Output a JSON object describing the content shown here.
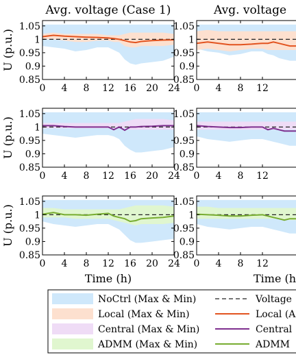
{
  "chart_data": {
    "type": "area",
    "titles": [
      "Avg. voltage (Case 1)",
      "Avg. voltage"
    ],
    "xlabel": "Time (h)",
    "ylabel": "U (p.u.)",
    "xlim": [
      0,
      24
    ],
    "ylim": [
      0.85,
      1.07
    ],
    "xticks": [
      0,
      4,
      8,
      12,
      16,
      20,
      24
    ],
    "right_xticks": [
      0,
      4,
      8,
      12
    ],
    "yticks": [
      0.85,
      0.9,
      0.95,
      1,
      1.05
    ],
    "ytick_labels": [
      "0.85",
      "0.9",
      "0.95",
      "1",
      "1.05"
    ],
    "xtick_labels": [
      "0",
      "4",
      "8",
      "12",
      "16",
      "20",
      "24"
    ],
    "voltage_reference": 1.0,
    "colors": {
      "nocrtl_band": "#cfe8fb",
      "local_band": "#fde0cf",
      "central_band": "#efdcf6",
      "admm_band": "#e0f6cf",
      "local_line": "#e2531f",
      "central_line": "#7e2f8e",
      "admm_line": "#77ac30",
      "ref_line": "#222222"
    },
    "legend": {
      "items": [
        {
          "label": "NoCtrl (Max & Min)",
          "kind": "band",
          "color": "#cfe8fb"
        },
        {
          "label": "Voltage",
          "kind": "dashed",
          "color": "#222222"
        },
        {
          "label": "Local (Max & Min)",
          "kind": "band",
          "color": "#fde0cf"
        },
        {
          "label": "Local (A",
          "kind": "line",
          "color": "#e2531f"
        },
        {
          "label": "Central (Max & Min)",
          "kind": "band",
          "color": "#efdcf6"
        },
        {
          "label": "Central",
          "kind": "line",
          "color": "#7e2f8e"
        },
        {
          "label": "ADMM (Max & Min)",
          "kind": "band",
          "color": "#e0f6cf"
        },
        {
          "label": "ADMM",
          "kind": "line",
          "color": "#77ac30"
        }
      ]
    },
    "x": [
      0,
      2,
      4,
      6,
      8,
      10,
      12,
      13,
      14,
      15,
      16,
      17,
      18,
      20,
      22,
      24
    ],
    "series": [
      {
        "row": 1,
        "panel": "left",
        "nocrtl_max": [
          1.055,
          1.055,
          1.055,
          1.055,
          1.055,
          1.055,
          1.055,
          1.055,
          1.055,
          1.055,
          1.055,
          1.055,
          1.055,
          1.055,
          1.055,
          1.055
        ],
        "nocrtl_min": [
          0.975,
          0.97,
          0.965,
          0.955,
          0.96,
          0.97,
          0.97,
          0.96,
          0.95,
          0.925,
          0.91,
          0.905,
          0.91,
          0.915,
          0.92,
          0.935
        ],
        "band_max": [
          1.02,
          1.025,
          1.02,
          1.02,
          1.02,
          1.02,
          1.015,
          1.015,
          1.015,
          1.02,
          1.025,
          1.025,
          1.025,
          1.025,
          1.025,
          1.02
        ],
        "band_min": [
          1.0,
          1.0,
          0.995,
          0.99,
          0.99,
          0.995,
          0.995,
          0.99,
          0.99,
          0.975,
          0.97,
          0.97,
          0.975,
          0.975,
          0.975,
          0.98
        ],
        "line": [
          1.01,
          1.015,
          1.012,
          1.01,
          1.008,
          1.007,
          1.005,
          1.003,
          1.0,
          0.995,
          0.99,
          0.988,
          0.992,
          0.995,
          0.997,
          0.998
        ]
      },
      {
        "row": 1,
        "panel": "right",
        "nocrtl_max": [
          1.055,
          1.055,
          1.055,
          1.055,
          1.055,
          1.055,
          1.055,
          1.055,
          1.055,
          1.055,
          1.055,
          1.055,
          1.055,
          1.055,
          1.055,
          1.055
        ],
        "nocrtl_min": [
          0.965,
          0.955,
          0.95,
          0.94,
          0.945,
          0.955,
          0.955,
          0.945,
          0.94,
          0.93,
          0.925,
          0.92,
          0.92,
          0.92,
          0.925,
          0.93
        ],
        "band_max": [
          1.03,
          1.035,
          1.03,
          1.03,
          1.03,
          1.03,
          1.03,
          1.03,
          1.03,
          1.03,
          1.03,
          1.03,
          1.03,
          1.03,
          1.03,
          1.03
        ],
        "band_min": [
          0.96,
          0.965,
          0.96,
          0.955,
          0.96,
          0.965,
          0.965,
          0.96,
          0.96,
          0.96,
          0.96,
          0.96,
          0.96,
          0.96,
          0.96,
          0.96
        ],
        "line": [
          0.985,
          0.99,
          0.985,
          0.98,
          0.98,
          0.982,
          0.985,
          0.985,
          0.99,
          0.985,
          0.98,
          0.975,
          0.975,
          0.975,
          0.975,
          0.975
        ]
      },
      {
        "row": 2,
        "panel": "left",
        "nocrtl_max": [
          1.055,
          1.055,
          1.055,
          1.055,
          1.055,
          1.055,
          1.055,
          1.055,
          1.055,
          1.055,
          1.055,
          1.055,
          1.055,
          1.055,
          1.055,
          1.055
        ],
        "nocrtl_min": [
          0.975,
          0.97,
          0.965,
          0.96,
          0.965,
          0.97,
          0.97,
          0.965,
          0.955,
          0.93,
          0.915,
          0.905,
          0.905,
          0.91,
          0.915,
          0.925
        ],
        "band_max": [
          1.015,
          1.015,
          1.015,
          1.015,
          1.015,
          1.015,
          1.015,
          1.015,
          1.015,
          1.02,
          1.025,
          1.03,
          1.03,
          1.03,
          1.03,
          1.025
        ],
        "band_min": [
          0.995,
          0.995,
          0.995,
          0.995,
          0.995,
          0.995,
          0.995,
          0.995,
          0.995,
          0.995,
          0.99,
          0.99,
          0.99,
          0.99,
          0.99,
          0.99
        ],
        "line": [
          1.005,
          1.005,
          1.002,
          1.0,
          1.0,
          1.0,
          1.0,
          0.99,
          1.0,
          0.988,
          1.0,
          1.0,
          1.002,
          1.003,
          1.005,
          1.005
        ]
      },
      {
        "row": 2,
        "panel": "right",
        "nocrtl_max": [
          1.055,
          1.055,
          1.055,
          1.055,
          1.055,
          1.055,
          1.055,
          1.055,
          1.055,
          1.055,
          1.055,
          1.055,
          1.055,
          1.055,
          1.055,
          1.055
        ],
        "nocrtl_min": [
          0.965,
          0.955,
          0.95,
          0.945,
          0.95,
          0.955,
          0.955,
          0.95,
          0.945,
          0.94,
          0.935,
          0.93,
          0.93,
          0.93,
          0.935,
          0.94
        ],
        "band_max": [
          1.02,
          1.02,
          1.02,
          1.02,
          1.02,
          1.02,
          1.02,
          1.02,
          1.02,
          1.02,
          1.02,
          1.02,
          1.02,
          1.02,
          1.02,
          1.02
        ],
        "band_min": [
          0.99,
          0.99,
          0.99,
          0.99,
          0.99,
          0.99,
          0.99,
          0.99,
          0.99,
          0.99,
          0.99,
          0.99,
          0.99,
          0.99,
          0.99,
          0.99
        ],
        "line": [
          1.005,
          1.002,
          1.0,
          0.998,
          0.998,
          1.0,
          1.0,
          0.99,
          0.995,
          0.99,
          0.985,
          0.985,
          0.985,
          0.985,
          0.985,
          0.985
        ]
      },
      {
        "row": 3,
        "panel": "left",
        "nocrtl_max": [
          1.055,
          1.055,
          1.055,
          1.055,
          1.055,
          1.055,
          1.055,
          1.055,
          1.055,
          1.055,
          1.055,
          1.055,
          1.055,
          1.055,
          1.055,
          1.055
        ],
        "nocrtl_min": [
          0.975,
          0.965,
          0.96,
          0.955,
          0.96,
          0.965,
          0.965,
          0.955,
          0.945,
          0.925,
          0.905,
          0.895,
          0.895,
          0.9,
          0.905,
          0.91
        ],
        "band_max": [
          1.025,
          1.025,
          1.02,
          1.02,
          1.02,
          1.02,
          1.02,
          1.02,
          1.02,
          1.025,
          1.03,
          1.035,
          1.035,
          1.035,
          1.035,
          1.03
        ],
        "band_min": [
          0.99,
          0.99,
          0.99,
          0.985,
          0.985,
          0.985,
          0.985,
          0.98,
          0.975,
          0.97,
          0.965,
          0.96,
          0.965,
          0.965,
          0.965,
          0.97
        ],
        "line": [
          1.002,
          1.008,
          1.0,
          1.0,
          0.998,
          1.002,
          1.005,
          0.995,
          0.99,
          0.985,
          0.975,
          0.978,
          0.985,
          0.988,
          0.99,
          0.995
        ]
      },
      {
        "row": 3,
        "panel": "right",
        "nocrtl_max": [
          1.055,
          1.055,
          1.055,
          1.055,
          1.055,
          1.055,
          1.055,
          1.055,
          1.055,
          1.055,
          1.055,
          1.055,
          1.055,
          1.055,
          1.055,
          1.055
        ],
        "nocrtl_min": [
          0.965,
          0.955,
          0.95,
          0.945,
          0.95,
          0.955,
          0.955,
          0.95,
          0.945,
          0.94,
          0.935,
          0.93,
          0.93,
          0.93,
          0.935,
          0.94
        ],
        "band_max": [
          1.03,
          1.03,
          1.025,
          1.025,
          1.025,
          1.025,
          1.025,
          1.025,
          1.025,
          1.025,
          1.025,
          1.025,
          1.025,
          1.025,
          1.025,
          1.025
        ],
        "band_min": [
          0.985,
          0.985,
          0.985,
          0.985,
          0.985,
          0.985,
          0.985,
          0.985,
          0.985,
          0.985,
          0.98,
          0.98,
          0.98,
          0.98,
          0.98,
          0.98
        ],
        "line": [
          1.002,
          1.0,
          0.998,
          0.995,
          0.995,
          0.998,
          1.0,
          0.995,
          0.99,
          0.985,
          0.98,
          0.985,
          0.985,
          0.985,
          0.985,
          0.985
        ]
      }
    ]
  }
}
